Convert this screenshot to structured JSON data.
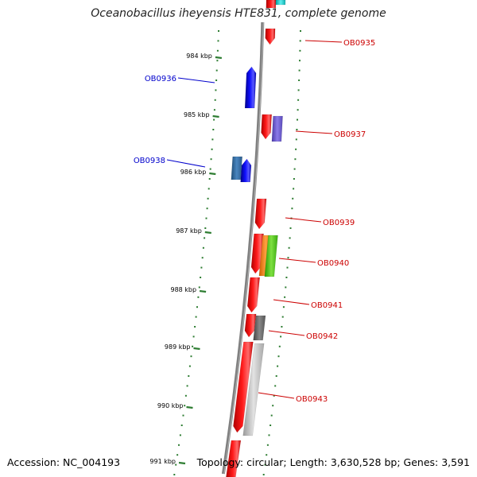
{
  "title": "Oceanobacillus iheyensis HTE831, complete genome",
  "footer": {
    "accession": "Accession: NC_004193",
    "topology": "Topology: circular; Length: 3,630,528 bp; Genes: 3,591"
  },
  "colors": {
    "backbone": "#808080",
    "tick": "#2e7d32",
    "forward_label": "#cc0000",
    "reverse_label": "#0000cc"
  },
  "ticks": [
    {
      "label": "984 kbp"
    },
    {
      "label": "985 kbp"
    },
    {
      "label": "986 kbp"
    },
    {
      "label": "987 kbp"
    },
    {
      "label": "988 kbp"
    },
    {
      "label": "989 kbp"
    },
    {
      "label": "990 kbp"
    },
    {
      "label": "991 kbp"
    }
  ],
  "gene_labels": [
    {
      "text": "OB0935",
      "strand": "forward"
    },
    {
      "text": "OB0936",
      "strand": "reverse"
    },
    {
      "text": "OB0937",
      "strand": "forward"
    },
    {
      "text": "OB0938",
      "strand": "reverse"
    },
    {
      "text": "OB0939",
      "strand": "forward"
    },
    {
      "text": "OB0940",
      "strand": "forward"
    },
    {
      "text": "OB0941",
      "strand": "forward"
    },
    {
      "text": "OB0942",
      "strand": "forward"
    },
    {
      "text": "OB0943",
      "strand": "forward"
    }
  ]
}
